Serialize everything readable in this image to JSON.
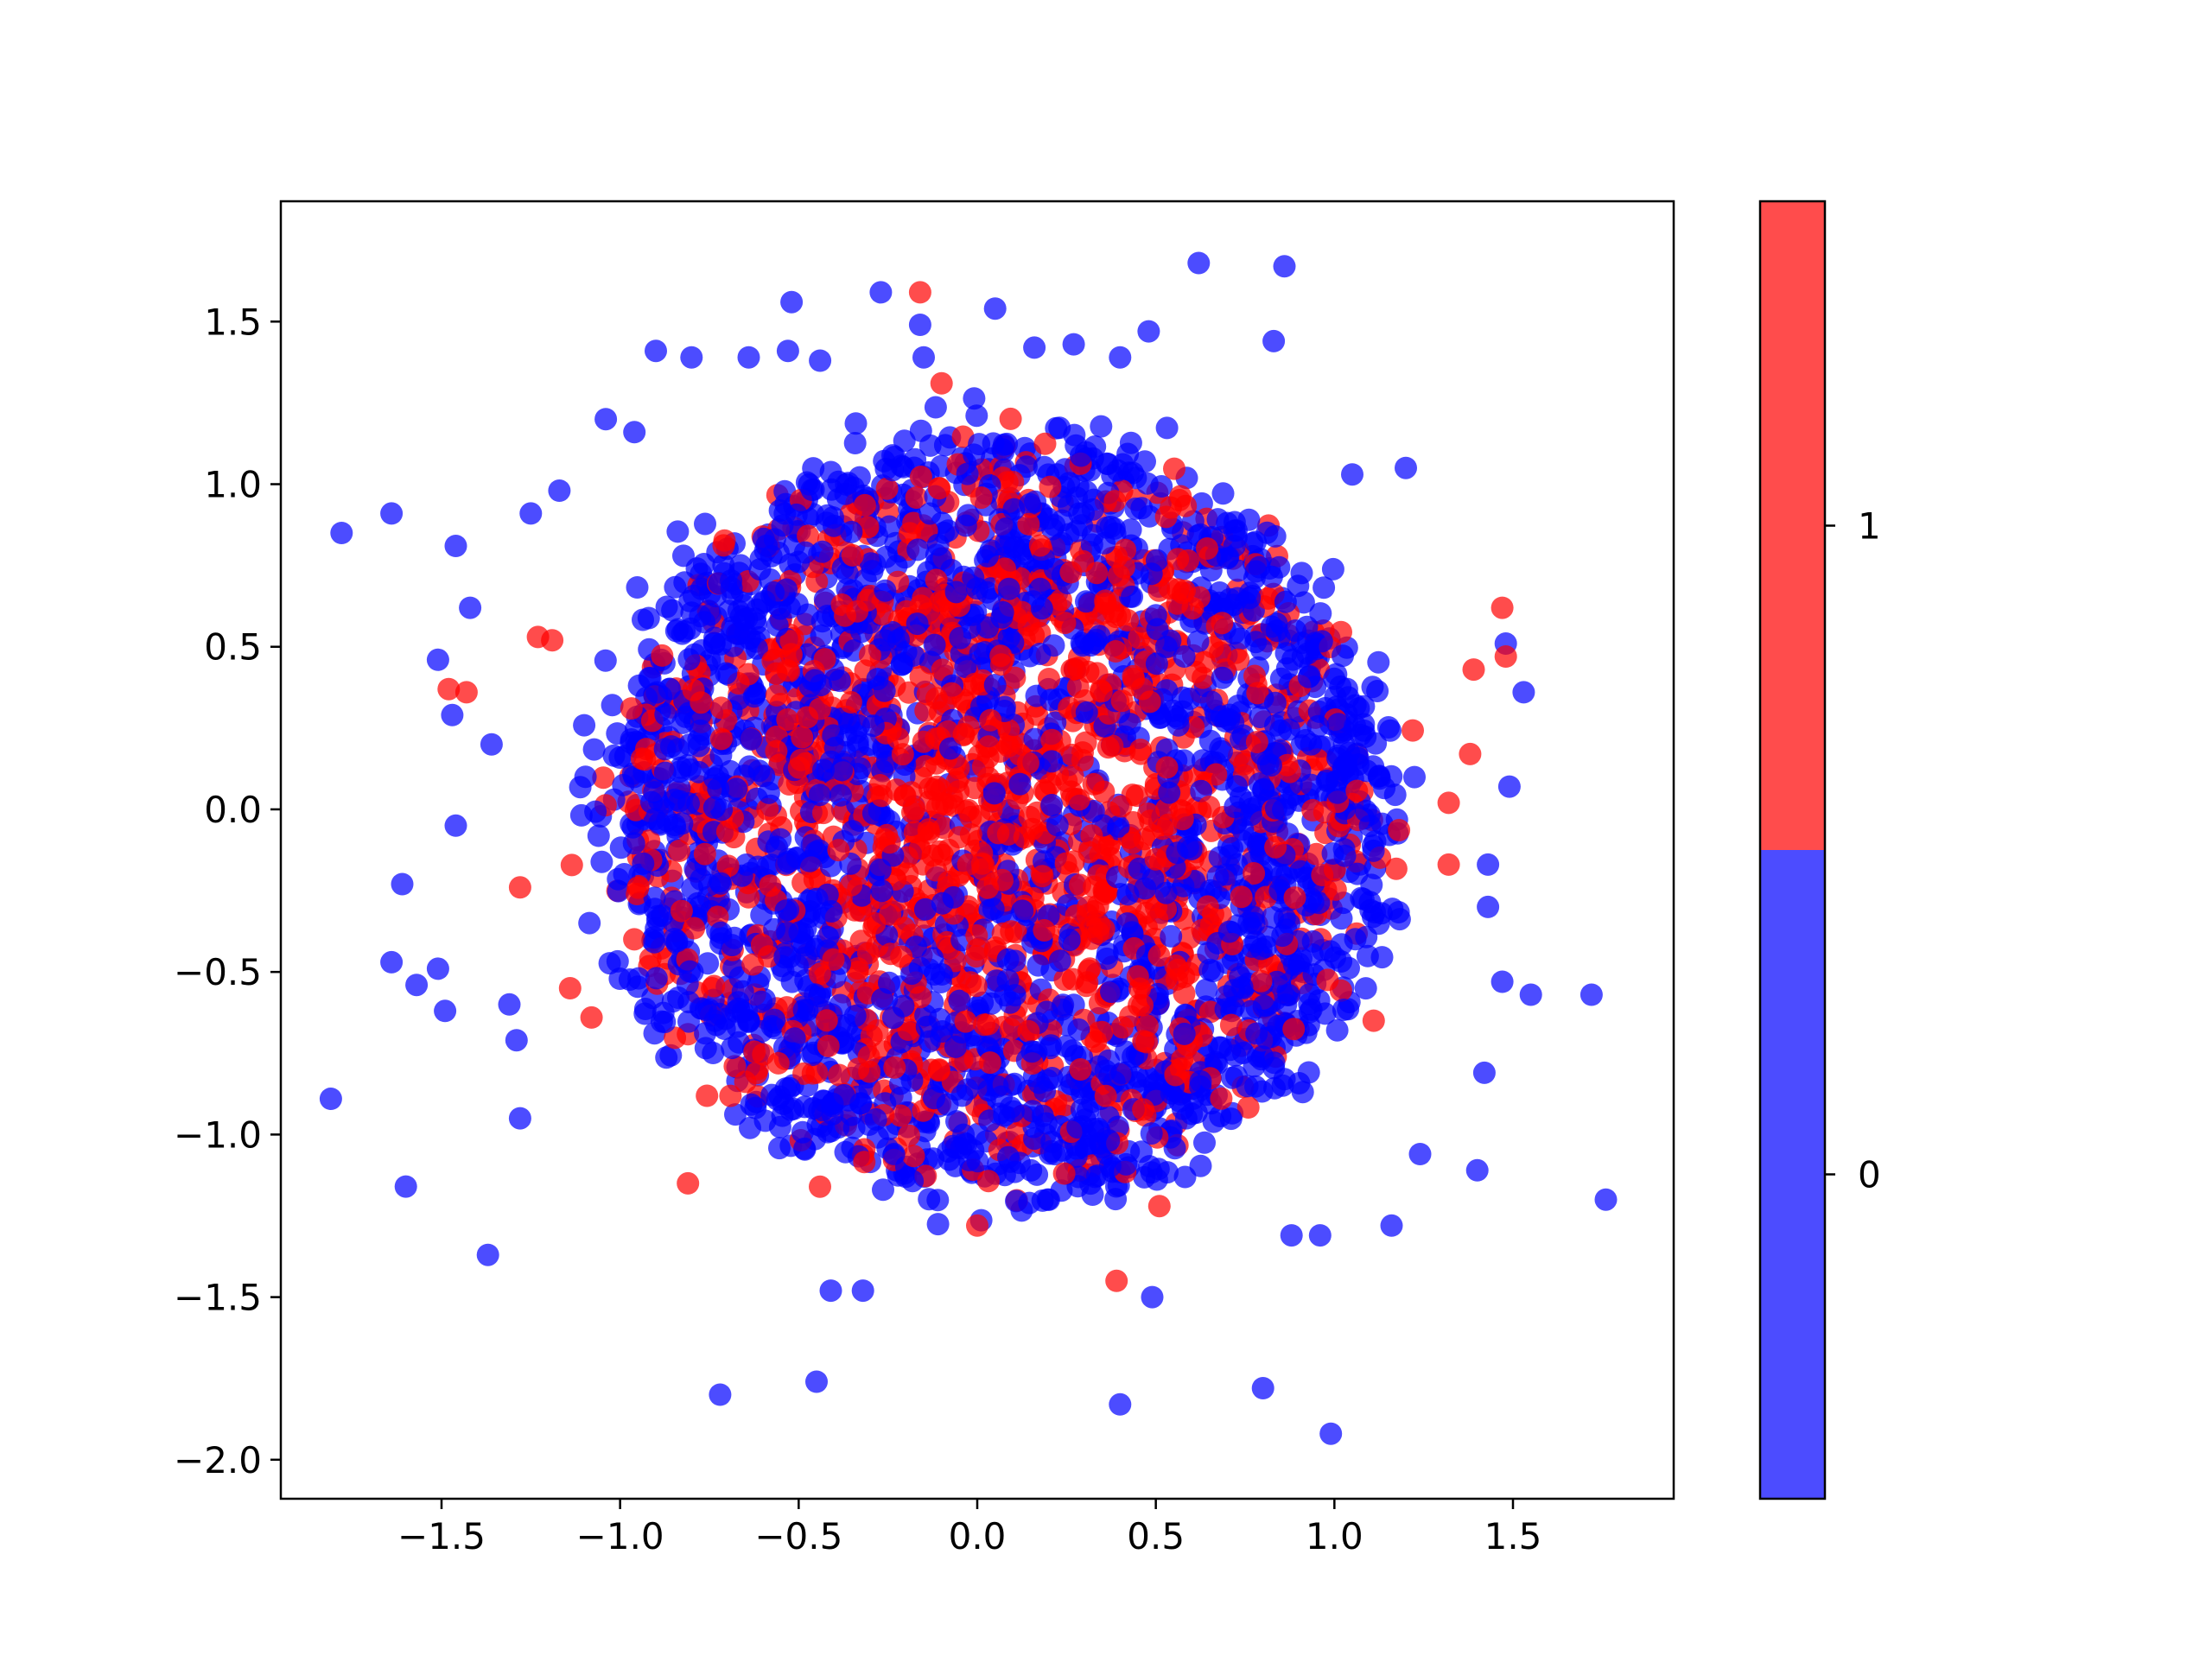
{
  "chart_data": {
    "type": "scatter",
    "title": "",
    "xlabel": "",
    "ylabel": "",
    "xlim": [
      -1.95,
      1.95
    ],
    "ylim": [
      -2.12,
      1.87
    ],
    "xticks": [
      -1.5,
      -1.0,
      -0.5,
      0.0,
      0.5,
      1.0,
      1.5
    ],
    "xtick_labels": [
      "−1.5",
      "−1.0",
      "−0.5",
      "0.0",
      "0.5",
      "1.0",
      "1.5"
    ],
    "yticks": [
      1.5,
      1.0,
      0.5,
      0.0,
      -0.5,
      -1.0,
      -1.5,
      -2.0
    ],
    "ytick_labels": [
      "1.5",
      "1.0",
      "0.5",
      "0.0",
      "−0.5",
      "−1.0",
      "−1.5",
      "−2.0"
    ],
    "grid": false,
    "marker_alpha": 0.7,
    "colorbar": {
      "classes": [
        {
          "value": 0,
          "label": "0",
          "color": "#0000ff"
        },
        {
          "value": 1,
          "label": "1",
          "color": "#ff0000"
        }
      ]
    },
    "series": [
      {
        "class": 0,
        "color": "#0000ff",
        "points": [
          [
            -1.78,
            0.85
          ],
          [
            -1.64,
            0.91
          ],
          [
            -1.46,
            0.81
          ],
          [
            -1.42,
            0.62
          ],
          [
            -1.51,
            0.46
          ],
          [
            -1.47,
            0.29
          ],
          [
            -1.36,
            0.2
          ],
          [
            -1.46,
            -0.05
          ],
          [
            -1.61,
            -0.23
          ],
          [
            -1.64,
            -0.47
          ],
          [
            -1.57,
            -0.54
          ],
          [
            -1.51,
            -0.49
          ],
          [
            -1.49,
            -0.62
          ],
          [
            -1.81,
            -0.89
          ],
          [
            -1.6,
            -1.16
          ],
          [
            -1.37,
            -1.37
          ],
          [
            -1.28,
            -0.95
          ],
          [
            -1.29,
            -0.71
          ],
          [
            -1.31,
            -0.6
          ],
          [
            -0.72,
            -1.8
          ],
          [
            -0.45,
            -1.76
          ],
          [
            -0.41,
            -1.48
          ],
          [
            -0.32,
            -1.48
          ],
          [
            0.4,
            -1.83
          ],
          [
            0.8,
            -1.78
          ],
          [
            0.99,
            -1.92
          ],
          [
            0.49,
            -1.5
          ],
          [
            1.76,
            -1.2
          ],
          [
            1.72,
            -0.57
          ],
          [
            1.55,
            -0.57
          ],
          [
            1.47,
            -0.53
          ],
          [
            1.4,
            -1.11
          ],
          [
            1.42,
            -0.81
          ],
          [
            1.16,
            -1.28
          ],
          [
            1.24,
            -1.06
          ],
          [
            0.88,
            -1.31
          ],
          [
            0.96,
            -1.31
          ],
          [
            0.62,
            1.68
          ],
          [
            0.86,
            1.67
          ],
          [
            0.83,
            1.44
          ],
          [
            0.48,
            1.47
          ],
          [
            0.4,
            1.39
          ],
          [
            0.05,
            1.54
          ],
          [
            -0.27,
            1.59
          ],
          [
            -0.52,
            1.56
          ],
          [
            -0.9,
            1.41
          ],
          [
            -0.8,
            1.39
          ],
          [
            -0.64,
            1.39
          ],
          [
            -0.53,
            1.41
          ],
          [
            -0.44,
            1.38
          ],
          [
            -0.16,
            1.49
          ],
          [
            -0.15,
            1.39
          ],
          [
            0.16,
            1.42
          ],
          [
            0.27,
            1.43
          ],
          [
            -1.04,
            1.2
          ],
          [
            -0.96,
            1.16
          ],
          [
            -1.17,
            0.98
          ],
          [
            -1.25,
            0.91
          ],
          [
            1.2,
            1.05
          ],
          [
            1.05,
            1.03
          ],
          [
            1.53,
            0.36
          ],
          [
            1.48,
            0.51
          ],
          [
            1.49,
            0.07
          ],
          [
            1.43,
            -0.17
          ],
          [
            1.43,
            -0.3
          ]
        ]
      },
      {
        "class": 1,
        "color": "#ff0000",
        "points": [
          [
            -0.16,
            1.59
          ],
          [
            -0.1,
            1.31
          ],
          [
            1.47,
            0.62
          ],
          [
            1.48,
            0.47
          ],
          [
            1.39,
            0.43
          ],
          [
            1.38,
            0.17
          ],
          [
            -0.81,
            -1.15
          ],
          [
            0.39,
            -1.45
          ],
          [
            0.51,
            -1.22
          ],
          [
            0.0,
            -1.28
          ],
          [
            -1.43,
            0.36
          ],
          [
            -1.48,
            0.37
          ],
          [
            -1.23,
            0.53
          ],
          [
            -1.19,
            0.52
          ],
          [
            -1.28,
            -0.24
          ],
          [
            -1.14,
            -0.55
          ],
          [
            -1.08,
            -0.64
          ],
          [
            1.11,
            -0.65
          ],
          [
            1.32,
            0.02
          ],
          [
            1.32,
            -0.17
          ]
        ]
      }
    ]
  }
}
